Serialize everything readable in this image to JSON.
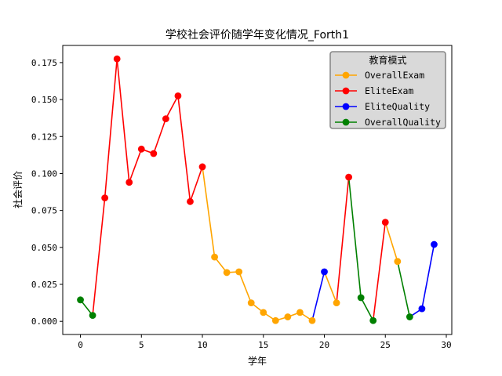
{
  "chart_data": {
    "type": "line",
    "title": "学校社会评价随学年变化情况_Forth1",
    "xlabel": "学年",
    "ylabel": "社会评价",
    "xlim": [
      -1.45,
      30.45
    ],
    "ylim": [
      -0.0089,
      0.1866
    ],
    "xticks": [
      0,
      5,
      10,
      15,
      20,
      25,
      30
    ],
    "yticks": [
      0.0,
      0.025,
      0.05,
      0.075,
      0.1,
      0.125,
      0.15,
      0.175
    ],
    "ytick_labels": [
      "0.000",
      "0.025",
      "0.050",
      "0.075",
      "0.100",
      "0.125",
      "0.150",
      "0.175"
    ],
    "grid": false,
    "legend": {
      "title": "教育模式",
      "placement": "top-right",
      "entries": [
        {
          "name": "OverallExam",
          "color": "#ffa500"
        },
        {
          "name": "EliteExam",
          "color": "#ff0000"
        },
        {
          "name": "EliteQuality",
          "color": "#0000ff"
        },
        {
          "name": "OverallQuality",
          "color": "#008000"
        }
      ]
    },
    "colors": {
      "OverallExam": "#ffa500",
      "EliteExam": "#ff0000",
      "EliteQuality": "#0000ff",
      "OverallQuality": "#008000"
    },
    "points": [
      {
        "x": 0,
        "y": 0.0145,
        "mode": "OverallQuality"
      },
      {
        "x": 1,
        "y": 0.004,
        "mode": "OverallQuality"
      },
      {
        "x": 2,
        "y": 0.0835,
        "mode": "EliteExam"
      },
      {
        "x": 3,
        "y": 0.1775,
        "mode": "EliteExam"
      },
      {
        "x": 4,
        "y": 0.094,
        "mode": "EliteExam"
      },
      {
        "x": 5,
        "y": 0.1165,
        "mode": "EliteExam"
      },
      {
        "x": 6,
        "y": 0.1135,
        "mode": "EliteExam"
      },
      {
        "x": 7,
        "y": 0.137,
        "mode": "EliteExam"
      },
      {
        "x": 8,
        "y": 0.1525,
        "mode": "EliteExam"
      },
      {
        "x": 9,
        "y": 0.081,
        "mode": "EliteExam"
      },
      {
        "x": 10,
        "y": 0.1045,
        "mode": "EliteExam"
      },
      {
        "x": 11,
        "y": 0.0435,
        "mode": "OverallExam"
      },
      {
        "x": 12,
        "y": 0.033,
        "mode": "OverallExam"
      },
      {
        "x": 13,
        "y": 0.0335,
        "mode": "OverallExam"
      },
      {
        "x": 14,
        "y": 0.0125,
        "mode": "OverallExam"
      },
      {
        "x": 15,
        "y": 0.006,
        "mode": "OverallExam"
      },
      {
        "x": 16,
        "y": 0.0005,
        "mode": "OverallExam"
      },
      {
        "x": 17,
        "y": 0.003,
        "mode": "OverallExam"
      },
      {
        "x": 18,
        "y": 0.006,
        "mode": "OverallExam"
      },
      {
        "x": 19,
        "y": 0.0005,
        "mode": "OverallExam"
      },
      {
        "x": 20,
        "y": 0.0335,
        "mode": "EliteQuality"
      },
      {
        "x": 21,
        "y": 0.0125,
        "mode": "OverallExam"
      },
      {
        "x": 22,
        "y": 0.0975,
        "mode": "EliteExam"
      },
      {
        "x": 23,
        "y": 0.016,
        "mode": "OverallQuality"
      },
      {
        "x": 24,
        "y": 0.0005,
        "mode": "OverallQuality"
      },
      {
        "x": 25,
        "y": 0.067,
        "mode": "EliteExam"
      },
      {
        "x": 26,
        "y": 0.0405,
        "mode": "OverallExam"
      },
      {
        "x": 27,
        "y": 0.003,
        "mode": "OverallQuality"
      },
      {
        "x": 28,
        "y": 0.0085,
        "mode": "EliteQuality"
      },
      {
        "x": 29,
        "y": 0.052,
        "mode": "EliteQuality"
      }
    ]
  }
}
